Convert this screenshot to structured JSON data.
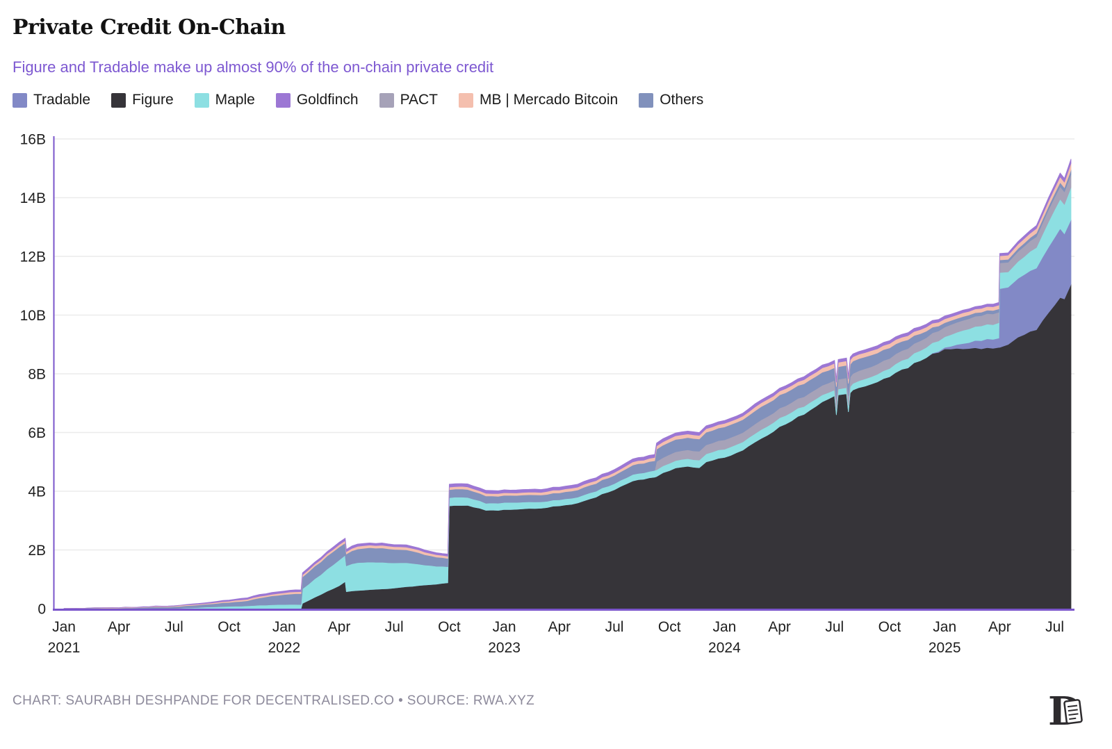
{
  "header": {
    "title": "Private Credit On-Chain",
    "subtitle": "Figure and Tradable make up almost 90% of the on-chain private credit"
  },
  "legend": [
    {
      "label": "Tradable",
      "color": "#8289c6"
    },
    {
      "label": "Figure",
      "color": "#363439"
    },
    {
      "label": "Maple",
      "color": "#8ddfe2"
    },
    {
      "label": "Goldfinch",
      "color": "#9c77d4"
    },
    {
      "label": "PACT",
      "color": "#a6a2b8"
    },
    {
      "label": "MB | Mercado Bitcoin",
      "color": "#f4bfae"
    },
    {
      "label": "Others",
      "color": "#8191bc"
    }
  ],
  "footer": {
    "credit": "CHART: SAURABH DESHPANDE FOR DECENTRALISED.CO • SOURCE: RWA.XYZ"
  },
  "chart_data": {
    "type": "area",
    "stacked": true,
    "title": "Private Credit On-Chain",
    "subtitle": "Figure and Tradable make up almost 90% of the on-chain private credit",
    "unit": "B USD",
    "ylim": [
      0,
      16
    ],
    "grid": "horizontal",
    "legend_position": "top",
    "axis_color": "#7a55cb",
    "grid_color": "#ebebeb",
    "tick_color": "#1f1f1f",
    "y_ticks": [
      {
        "v": 0,
        "label": "0"
      },
      {
        "v": 2,
        "label": "2B"
      },
      {
        "v": 4,
        "label": "4B"
      },
      {
        "v": 6,
        "label": "6B"
      },
      {
        "v": 8,
        "label": "8B"
      },
      {
        "v": 10,
        "label": "10B"
      },
      {
        "v": 12,
        "label": "12B"
      },
      {
        "v": 14,
        "label": "14B"
      },
      {
        "v": 16,
        "label": "16B"
      }
    ],
    "x_ticks": [
      {
        "t": 0,
        "label": "Jan",
        "year": "2021"
      },
      {
        "t": 3,
        "label": "Apr"
      },
      {
        "t": 6,
        "label": "Jul"
      },
      {
        "t": 9,
        "label": "Oct"
      },
      {
        "t": 12,
        "label": "Jan",
        "year": "2022"
      },
      {
        "t": 15,
        "label": "Apr"
      },
      {
        "t": 18,
        "label": "Jul"
      },
      {
        "t": 21,
        "label": "Oct"
      },
      {
        "t": 24,
        "label": "Jan",
        "year": "2023"
      },
      {
        "t": 27,
        "label": "Apr"
      },
      {
        "t": 30,
        "label": "Jul"
      },
      {
        "t": 33,
        "label": "Oct"
      },
      {
        "t": 36,
        "label": "Jan",
        "year": "2024"
      },
      {
        "t": 39,
        "label": "Apr"
      },
      {
        "t": 42,
        "label": "Jul"
      },
      {
        "t": 45,
        "label": "Oct"
      },
      {
        "t": 48,
        "label": "Jan",
        "year": "2025"
      },
      {
        "t": 51,
        "label": "Apr"
      },
      {
        "t": 54,
        "label": "Jul"
      }
    ],
    "dates": [
      "2021-01-01",
      "2021-02-01",
      "2021-03-01",
      "2021-04-01",
      "2021-05-01",
      "2021-06-01",
      "2021-07-01",
      "2021-08-01",
      "2021-09-01",
      "2021-10-01",
      "2021-11-01",
      "2021-12-01",
      "2022-01-01",
      "2022-01-29",
      "2022-02-01",
      "2022-03-01",
      "2022-04-01",
      "2022-04-11",
      "2022-04-13",
      "2022-05-01",
      "2022-06-01",
      "2022-07-01",
      "2022-08-01",
      "2022-09-01",
      "2022-09-29",
      "2022-10-01",
      "2022-11-01",
      "2022-12-01",
      "2023-01-01",
      "2023-02-01",
      "2023-03-01",
      "2023-04-01",
      "2023-05-01",
      "2023-06-01",
      "2023-07-01",
      "2023-08-01",
      "2023-09-07",
      "2023-09-10",
      "2023-10-01",
      "2023-11-01",
      "2023-11-20",
      "2023-12-01",
      "2024-01-01",
      "2024-02-01",
      "2024-03-01",
      "2024-04-01",
      "2024-05-01",
      "2024-06-01",
      "2024-07-01",
      "2024-07-04",
      "2024-07-07",
      "2024-07-21",
      "2024-07-24",
      "2024-07-27",
      "2024-08-01",
      "2024-09-01",
      "2024-10-01",
      "2024-11-01",
      "2024-12-01",
      "2025-01-01",
      "2025-02-01",
      "2025-03-01",
      "2025-03-30",
      "2025-04-01",
      "2025-04-15",
      "2025-05-01",
      "2025-06-01",
      "2025-07-01",
      "2025-07-10",
      "2025-07-17",
      "2025-07-28"
    ],
    "series": [
      {
        "name": "Figure",
        "color": "#363439",
        "values": [
          0,
          0,
          0,
          0,
          0,
          0,
          0,
          0,
          0,
          0,
          0,
          0,
          0,
          0,
          0.18,
          0.48,
          0.78,
          0.92,
          0.58,
          0.62,
          0.66,
          0.7,
          0.76,
          0.82,
          0.88,
          3.5,
          3.52,
          3.35,
          3.38,
          3.4,
          3.42,
          3.5,
          3.6,
          3.8,
          4.05,
          4.35,
          4.48,
          4.5,
          4.7,
          4.85,
          4.8,
          5.0,
          5.15,
          5.4,
          5.8,
          6.2,
          6.55,
          6.9,
          7.25,
          6.6,
          7.28,
          7.32,
          6.7,
          7.35,
          7.45,
          7.65,
          7.9,
          8.2,
          8.55,
          8.85,
          8.85,
          8.85,
          8.9,
          8.9,
          9.0,
          9.25,
          9.5,
          10.35,
          10.6,
          10.55,
          11.05
        ]
      },
      {
        "name": "Tradable",
        "color": "#8289c6",
        "values": [
          0,
          0,
          0,
          0,
          0,
          0,
          0,
          0,
          0,
          0,
          0,
          0,
          0,
          0,
          0,
          0,
          0,
          0,
          0,
          0,
          0,
          0,
          0,
          0,
          0,
          0,
          0,
          0,
          0,
          0,
          0,
          0,
          0,
          0,
          0,
          0,
          0,
          0,
          0,
          0,
          0,
          0,
          0,
          0,
          0,
          0,
          0,
          0,
          0,
          0,
          0,
          0,
          0,
          0,
          0,
          0,
          0,
          0,
          0,
          0.05,
          0.18,
          0.28,
          0.32,
          2.0,
          1.95,
          2.0,
          2.1,
          2.3,
          2.35,
          2.22,
          2.2
        ]
      },
      {
        "name": "Maple",
        "color": "#8ddfe2",
        "values": [
          0,
          0,
          0,
          0,
          0,
          0.01,
          0.01,
          0.03,
          0.06,
          0.08,
          0.1,
          0.12,
          0.14,
          0.14,
          0.5,
          0.68,
          0.88,
          0.9,
          0.88,
          0.95,
          0.92,
          0.86,
          0.78,
          0.65,
          0.55,
          0.28,
          0.27,
          0.24,
          0.24,
          0.23,
          0.22,
          0.21,
          0.2,
          0.2,
          0.21,
          0.22,
          0.23,
          0.23,
          0.25,
          0.26,
          0.26,
          0.27,
          0.28,
          0.28,
          0.3,
          0.3,
          0.28,
          0.25,
          0.2,
          0.2,
          0.2,
          0.21,
          0.21,
          0.21,
          0.22,
          0.25,
          0.28,
          0.32,
          0.35,
          0.36,
          0.45,
          0.5,
          0.52,
          0.55,
          0.52,
          0.58,
          0.7,
          0.95,
          1.0,
          1.0,
          1.1
        ]
      },
      {
        "name": "PACT",
        "color": "#a6a2b8",
        "values": [
          0,
          0,
          0,
          0,
          0,
          0,
          0,
          0,
          0,
          0,
          0,
          0,
          0,
          0,
          0,
          0,
          0,
          0,
          0,
          0,
          0,
          0,
          0,
          0,
          0,
          0,
          0,
          0,
          0,
          0,
          0,
          0,
          0,
          0,
          0,
          0,
          0,
          0.28,
          0.3,
          0.3,
          0.3,
          0.31,
          0.32,
          0.32,
          0.33,
          0.33,
          0.33,
          0.33,
          0.33,
          0.33,
          0.33,
          0.33,
          0.33,
          0.33,
          0.34,
          0.34,
          0.34,
          0.34,
          0.33,
          0.33,
          0.34,
          0.35,
          0.36,
          0.33,
          0.33,
          0.34,
          0.37,
          0.42,
          0.43,
          0.43,
          0.45
        ]
      },
      {
        "name": "Others",
        "color": "#8191bc",
        "values": [
          0.01,
          0.01,
          0.02,
          0.02,
          0.03,
          0.05,
          0.06,
          0.08,
          0.1,
          0.13,
          0.17,
          0.28,
          0.34,
          0.37,
          0.4,
          0.43,
          0.44,
          0.42,
          0.4,
          0.46,
          0.48,
          0.46,
          0.42,
          0.33,
          0.28,
          0.27,
          0.27,
          0.25,
          0.24,
          0.24,
          0.23,
          0.23,
          0.24,
          0.26,
          0.28,
          0.32,
          0.33,
          0.42,
          0.42,
          0.42,
          0.42,
          0.43,
          0.44,
          0.44,
          0.45,
          0.45,
          0.44,
          0.44,
          0.43,
          0.43,
          0.43,
          0.43,
          0.43,
          0.43,
          0.42,
          0.4,
          0.36,
          0.3,
          0.22,
          0.15,
          0.13,
          0.12,
          0.11,
          0.1,
          0.1,
          0.1,
          0.12,
          0.13,
          0.14,
          0.14,
          0.15
        ]
      },
      {
        "name": "MB | Mercado Bitcoin",
        "color": "#f4bfae",
        "values": [
          0,
          0,
          0.01,
          0.01,
          0.01,
          0.02,
          0.02,
          0.03,
          0.03,
          0.04,
          0.05,
          0.05,
          0.06,
          0.07,
          0.07,
          0.08,
          0.08,
          0.08,
          0.08,
          0.09,
          0.09,
          0.09,
          0.09,
          0.08,
          0.08,
          0.09,
          0.09,
          0.09,
          0.09,
          0.09,
          0.09,
          0.1,
          0.1,
          0.1,
          0.1,
          0.11,
          0.11,
          0.11,
          0.12,
          0.12,
          0.12,
          0.12,
          0.12,
          0.12,
          0.13,
          0.13,
          0.13,
          0.14,
          0.15,
          0.15,
          0.15,
          0.15,
          0.15,
          0.15,
          0.15,
          0.15,
          0.15,
          0.14,
          0.14,
          0.13,
          0.13,
          0.13,
          0.13,
          0.14,
          0.14,
          0.15,
          0.16,
          0.18,
          0.19,
          0.19,
          0.22
        ]
      },
      {
        "name": "Goldfinch",
        "color": "#9c77d4",
        "values": [
          0,
          0,
          0,
          0,
          0.01,
          0.01,
          0.01,
          0.02,
          0.03,
          0.04,
          0.05,
          0.06,
          0.06,
          0.06,
          0.07,
          0.07,
          0.08,
          0.08,
          0.08,
          0.08,
          0.07,
          0.07,
          0.07,
          0.07,
          0.07,
          0.1,
          0.1,
          0.1,
          0.1,
          0.1,
          0.1,
          0.1,
          0.1,
          0.1,
          0.1,
          0.1,
          0.1,
          0.1,
          0.1,
          0.1,
          0.1,
          0.1,
          0.1,
          0.1,
          0.1,
          0.1,
          0.1,
          0.1,
          0.1,
          0.1,
          0.1,
          0.1,
          0.1,
          0.1,
          0.1,
          0.1,
          0.1,
          0.1,
          0.1,
          0.1,
          0.09,
          0.09,
          0.09,
          0.08,
          0.08,
          0.09,
          0.1,
          0.12,
          0.13,
          0.13,
          0.15
        ]
      }
    ]
  }
}
